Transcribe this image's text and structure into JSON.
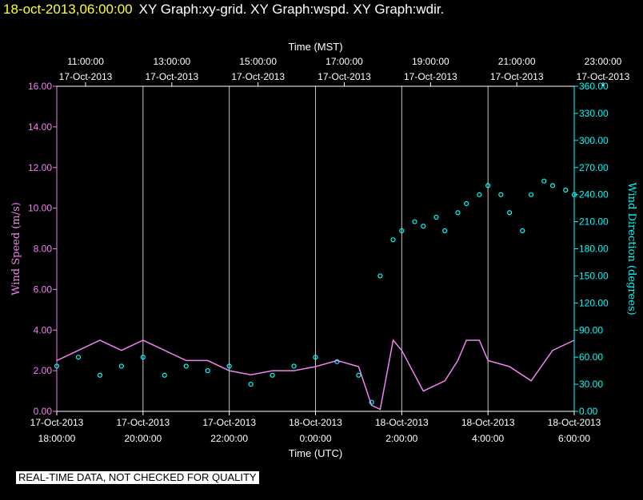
{
  "header": {
    "timestamp": "18-oct-2013,06:00:00",
    "titles": "XY Graph:xy-grid.  XY Graph:wspd.  XY Graph:wdir."
  },
  "notice": "REAL-TIME DATA, NOT CHECKED FOR QUALITY",
  "colors": {
    "background": "#000000",
    "axes": "#ffffff",
    "grid": "#c8c8c8",
    "wind_speed": "#ee82ee",
    "wind_direction": "#00ffff",
    "timestamp": "#ffff33"
  },
  "chart_data": {
    "type": "line",
    "top_axis_title": "Time (MST)",
    "bottom_axis_title": "Time (UTC)",
    "left_axis_title": "Wind Speed (m/s)",
    "right_axis_title": "Wind Direction (degrees)",
    "x_top_ticks": [
      {
        "time": "11:00:00",
        "date": "17-Oct-2013"
      },
      {
        "time": "13:00:00",
        "date": "17-Oct-2013"
      },
      {
        "time": "15:00:00",
        "date": "17-Oct-2013"
      },
      {
        "time": "17:00:00",
        "date": "17-Oct-2013"
      },
      {
        "time": "19:00:00",
        "date": "17-Oct-2013"
      },
      {
        "time": "21:00:00",
        "date": "17-Oct-2013"
      },
      {
        "time": "23:00:00",
        "date": "17-Oct-2013"
      }
    ],
    "x_bottom_ticks": [
      {
        "date": "17-Oct-2013",
        "time": "18:00:00"
      },
      {
        "date": "17-Oct-2013",
        "time": "20:00:00"
      },
      {
        "date": "17-Oct-2013",
        "time": "22:00:00"
      },
      {
        "date": "18-Oct-2013",
        "time": "0:00:00"
      },
      {
        "date": "18-Oct-2013",
        "time": "2:00:00"
      },
      {
        "date": "18-Oct-2013",
        "time": "4:00:00"
      },
      {
        "date": "18-Oct-2013",
        "time": "6:00:00"
      }
    ],
    "y_left_ticks": [
      "0.00",
      "2.00",
      "4.00",
      "6.00",
      "8.00",
      "10.00",
      "12.00",
      "14.00",
      "16.00"
    ],
    "y_left_range": [
      0,
      16
    ],
    "y_right_ticks": [
      "0.00",
      "30.00",
      "60.00",
      "90.00",
      "120.00",
      "150.00",
      "180.00",
      "210.00",
      "240.00",
      "270.00",
      "300.00",
      "330.00",
      "360.00"
    ],
    "y_right_range": [
      0,
      360
    ],
    "x_range_utc_hours": [
      18,
      30
    ],
    "grid": "vertical",
    "series": [
      {
        "name": "wspd",
        "axis": "left",
        "style": "line",
        "x": [
          18.0,
          18.5,
          19.0,
          19.5,
          20.0,
          20.5,
          21.0,
          21.5,
          22.0,
          22.5,
          23.0,
          23.5,
          24.0,
          24.5,
          25.0,
          25.3,
          25.5,
          25.8,
          26.0,
          26.5,
          27.0,
          27.3,
          27.5,
          27.8,
          28.0,
          28.5,
          29.0,
          29.5,
          30.0
        ],
        "y": [
          2.5,
          3.0,
          3.5,
          3.0,
          3.5,
          3.0,
          2.5,
          2.5,
          2.0,
          1.8,
          2.0,
          2.0,
          2.2,
          2.5,
          2.2,
          0.3,
          0.1,
          3.5,
          3.0,
          1.0,
          1.5,
          2.5,
          3.5,
          3.5,
          2.5,
          2.2,
          1.5,
          3.0,
          3.5
        ]
      },
      {
        "name": "wdir",
        "axis": "right",
        "style": "points",
        "x": [
          18.0,
          18.5,
          19.0,
          19.5,
          20.0,
          20.5,
          21.0,
          21.5,
          22.0,
          22.5,
          23.0,
          23.5,
          24.0,
          24.5,
          25.0,
          25.3,
          25.5,
          25.8,
          26.0,
          26.3,
          26.5,
          26.8,
          27.0,
          27.3,
          27.5,
          27.8,
          28.0,
          28.3,
          28.5,
          28.8,
          29.0,
          29.3,
          29.5,
          29.8,
          30.0
        ],
        "y": [
          50,
          60,
          40,
          50,
          60,
          40,
          50,
          45,
          50,
          30,
          40,
          50,
          60,
          55,
          40,
          10,
          150,
          190,
          200,
          210,
          205,
          215,
          200,
          220,
          230,
          240,
          250,
          240,
          220,
          200,
          240,
          255,
          250,
          245,
          240
        ]
      }
    ]
  }
}
